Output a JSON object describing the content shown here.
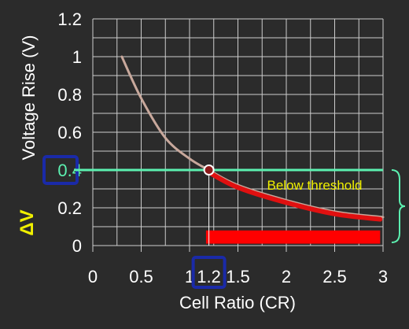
{
  "chart_data": {
    "type": "line",
    "xlabel": "Cell Ratio (CR)",
    "ylabel": "Voltage Rise (V)",
    "xlim": [
      0,
      3
    ],
    "ylim": [
      0,
      1.2
    ],
    "x_ticks": [
      0,
      0.5,
      1,
      1.2,
      1.5,
      2,
      2.5,
      3
    ],
    "x_tick_labels": [
      "0",
      "0.5",
      "1",
      "1.2",
      "1.5",
      "2",
      "2.5",
      "3"
    ],
    "y_ticks": [
      0,
      0.2,
      0.4,
      0.6,
      0.8,
      1,
      1.2
    ],
    "y_tick_labels": [
      "0",
      "0.2",
      "0.4",
      "0.6",
      "0.8",
      "1",
      "1.2"
    ],
    "grid": true,
    "series": [
      {
        "color": "#c8a89c",
        "x": [
          0.3,
          0.5,
          0.75,
          1.0,
          1.2,
          1.5,
          2.0,
          2.5,
          3.0
        ],
        "y": [
          1.0,
          0.78,
          0.57,
          0.46,
          0.4,
          0.32,
          0.24,
          0.18,
          0.15
        ]
      }
    ],
    "highlight_curve": {
      "color": "#e01010",
      "x_from": 1.2,
      "x_to": 2.97
    },
    "threshold_line": {
      "y": 0.4,
      "color": "#5cf0b0"
    },
    "threshold_label": "0.4",
    "marker_point": {
      "x": 1.2,
      "y": 0.4
    },
    "highlight_bar": {
      "x_from": 1.17,
      "x_to": 2.97,
      "y_from": 0.01,
      "y_to": 0.08,
      "color": "#ff0000"
    },
    "annotations": {
      "below_threshold": "Below threshold",
      "delta_v": "ΔV"
    },
    "colors": {
      "background": "#2b2b2b",
      "axis_text": "#ffffff",
      "grid": "#cccccc",
      "box_highlight": "#1a2aa8",
      "annotation_yellow": "#f0f000",
      "brace": "#5cf0b0"
    }
  }
}
